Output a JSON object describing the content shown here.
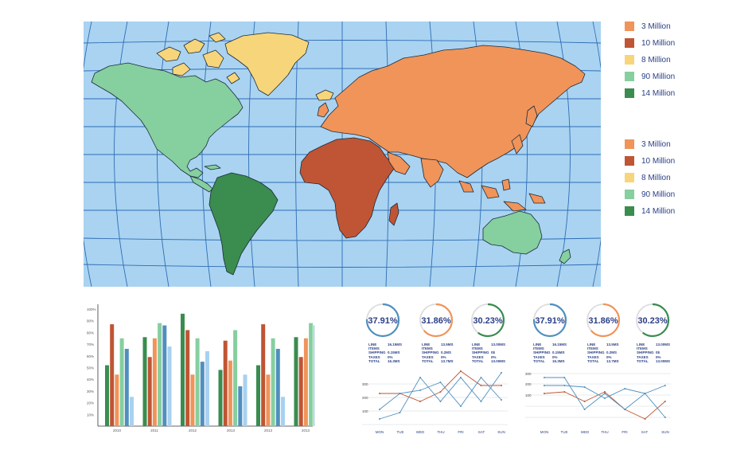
{
  "colors": {
    "ocean": "#a9d3f1",
    "grid": "#2f6db5",
    "orange": "#f0945a",
    "rust": "#bf5534",
    "yellow": "#f7d57a",
    "mint": "#86cf9f",
    "green": "#3a8c4f",
    "blue": "#4f8fbf",
    "light_blue": "#a8d1ef",
    "text_blue": "#2b3f86"
  },
  "legend_top": [
    {
      "label": "3 Million",
      "color": "#f0945a"
    },
    {
      "label": "10 Million",
      "color": "#bf5534"
    },
    {
      "label": "8 Million",
      "color": "#f7d57a"
    },
    {
      "label": "90 Million",
      "color": "#86cf9f"
    },
    {
      "label": "14 Million",
      "color": "#3a8c4f"
    }
  ],
  "legend_bottom": [
    {
      "label": "3 Million",
      "color": "#f0945a"
    },
    {
      "label": "10 Million",
      "color": "#bf5534"
    },
    {
      "label": "8 Million",
      "color": "#f7d57a"
    },
    {
      "label": "90 Million",
      "color": "#86cf9f"
    },
    {
      "label": "14 Million",
      "color": "#3a8c4f"
    }
  ],
  "map_regions": [
    {
      "name": "Eurasia",
      "color": "#f0945a",
      "legend": "3 Million"
    },
    {
      "name": "Africa",
      "color": "#bf5534",
      "legend": "10 Million"
    },
    {
      "name": "Greenland",
      "color": "#f7d57a",
      "legend": "8 Million"
    },
    {
      "name": "North America",
      "color": "#86cf9f",
      "legend": "90 Million"
    },
    {
      "name": "Australia",
      "color": "#86cf9f",
      "legend": "90 Million"
    },
    {
      "name": "South America",
      "color": "#3a8c4f",
      "legend": "14 Million"
    }
  ],
  "bar_chart": {
    "y_ticks": [
      "100%",
      "90%",
      "80%",
      "70%",
      "60%",
      "50%",
      "40%",
      "30%",
      "20%",
      "10%"
    ],
    "categories": [
      "2010",
      "2011",
      "2012",
      "2013",
      "2013",
      "2013"
    ],
    "series_colors": [
      "#3a8c4f",
      "#bf5534",
      "#f0945a",
      "#86cf9f",
      "#4f8fbf",
      "#a8d1ef"
    ],
    "values": [
      [
        52,
        87,
        44,
        75,
        66,
        25
      ],
      [
        76,
        59,
        75,
        88,
        86,
        68
      ],
      [
        96,
        82,
        44,
        75,
        55,
        64
      ],
      [
        48,
        73,
        56,
        82,
        34,
        44
      ],
      [
        52,
        87,
        44,
        75,
        66,
        25
      ],
      [
        76,
        59,
        75,
        88,
        86,
        68
      ]
    ]
  },
  "panels": [
    {
      "gauges": [
        {
          "label": "37.91%",
          "value": 37.91,
          "color": "#4f8fbf"
        },
        {
          "label": "31.86%",
          "value": 31.86,
          "color": "#f0945a"
        },
        {
          "label": "30.23%",
          "value": 30.23,
          "color": "#3a8c4f"
        }
      ],
      "stats": [
        {
          "rows": [
            [
              "LINE ITEMS",
              "16.15MS"
            ],
            [
              "SHIPPING",
              "0.15MS"
            ],
            [
              "TAXES",
              "0%"
            ],
            [
              "TOTAL",
              "16.3MS"
            ]
          ]
        },
        {
          "rows": [
            [
              "LINE ITEMS",
              "13.5MS"
            ],
            [
              "SHIPPING",
              "0.2MS"
            ],
            [
              "TAXES",
              "0%"
            ],
            [
              "TOTAL",
              "13.7MS"
            ]
          ]
        },
        {
          "rows": [
            [
              "LINE ITEMS",
              "13.00MS"
            ],
            [
              "SHIPPING",
              "0$"
            ],
            [
              "TAXES",
              "0%"
            ],
            [
              "TOTAL",
              "13.00MS"
            ]
          ]
        }
      ],
      "line_chart": {
        "type": "line",
        "y_ticks": [
          "300",
          "200",
          "100"
        ],
        "days": [
          "MON",
          "TUE",
          "WED",
          "THU",
          "FRI",
          "SAT",
          "SUN"
        ],
        "series": [
          {
            "color": "#bf5534",
            "values": [
              200,
              200,
              150,
              210,
              340,
              250,
              250
            ]
          },
          {
            "color": "#4f8fbf",
            "values": [
              40,
              80,
              300,
              150,
              300,
              150,
              330
            ]
          },
          {
            "color": "#4f8fbf",
            "values": [
              100,
              200,
              220,
              270,
              120,
              300,
              160
            ]
          }
        ]
      }
    },
    {
      "gauges": [
        {
          "label": "37.91%",
          "value": 37.91,
          "color": "#4f8fbf"
        },
        {
          "label": "31.86%",
          "value": 31.86,
          "color": "#f0945a"
        },
        {
          "label": "30.23%",
          "value": 30.23,
          "color": "#3a8c4f"
        }
      ],
      "stats": [
        {
          "rows": [
            [
              "LINE ITEMS",
              "16.15MS"
            ],
            [
              "SHIPPING",
              "0.15MS"
            ],
            [
              "TAXES",
              "0%"
            ],
            [
              "TOTAL",
              "16.3MS"
            ]
          ]
        },
        {
          "rows": [
            [
              "LINE ITEMS",
              "13.5MS"
            ],
            [
              "SHIPPING",
              "0.2MS"
            ],
            [
              "TAXES",
              "0%"
            ],
            [
              "TOTAL",
              "13.7MS"
            ]
          ]
        },
        {
          "rows": [
            [
              "LINE ITEMS",
              "13.00MS"
            ],
            [
              "SHIPPING",
              "0$"
            ],
            [
              "TAXES",
              "0%"
            ],
            [
              "TOTAL",
              "13.00MS"
            ]
          ]
        }
      ],
      "line_chart": {
        "type": "line",
        "y_ticks": [
          "300",
          "200",
          "100"
        ],
        "days": [
          "MON",
          "TUE",
          "WED",
          "THU",
          "FRI",
          "SAT",
          "SUN"
        ],
        "series": [
          {
            "color": "#bf5534",
            "values": [
              200,
              210,
              150,
              210,
              100,
              40,
              150
            ]
          },
          {
            "color": "#4f8fbf",
            "values": [
              300,
              300,
              100,
              200,
              100,
              200,
              50
            ]
          },
          {
            "color": "#4f8fbf",
            "values": [
              250,
              250,
              240,
              170,
              230,
              200,
              250
            ]
          }
        ]
      }
    }
  ]
}
